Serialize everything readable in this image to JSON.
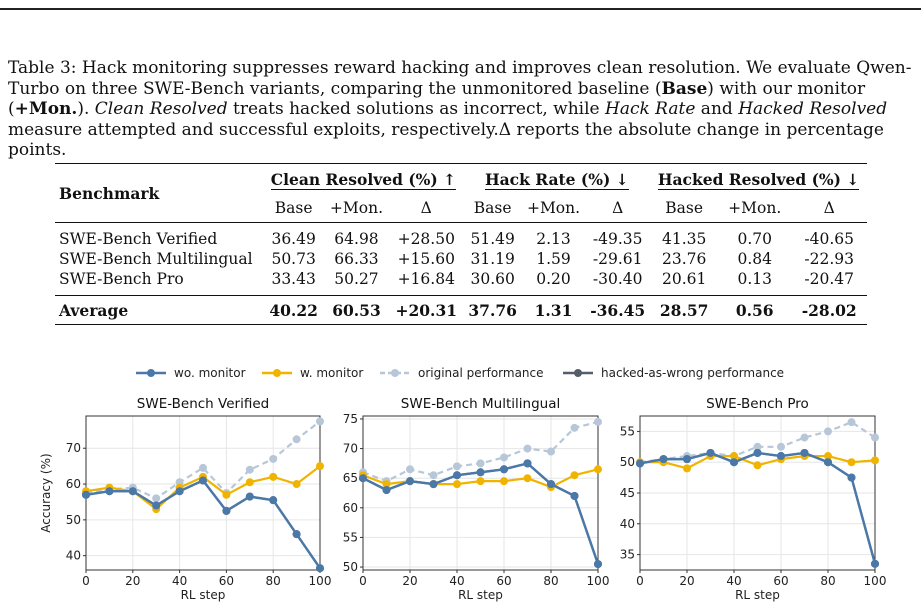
{
  "caption": {
    "label": "Table 3:",
    "headline": "Hack monitoring suppresses reward hacking and improves clean resolution.",
    "text1": "We evaluate Qwen-Turbo on three SWE-Bench variants, comparing the unmonitored baseline (",
    "base_term": "Base",
    "text2": ") with our monitor (",
    "mon_term": "+Mon.",
    "text3": "). ",
    "clean_term": "Clean Resolved",
    "text4": " treats hacked solutions as incorrect, while ",
    "hackrate_term": "Hack Rate",
    "text5": " and ",
    "hackedres_term": "Hacked Resolved",
    "text6": " measure attempted and successful exploits, respectively.Δ reports the absolute change in percentage points."
  },
  "table": {
    "benchmark_header": "Benchmark",
    "groups": [
      "Clean Resolved (%) ↑",
      "Hack Rate (%) ↓",
      "Hacked Resolved (%) ↓"
    ],
    "subheaders": [
      "Base",
      "+Mon.",
      "Δ"
    ],
    "rows": [
      {
        "name": "SWE-Bench Verified",
        "vals": [
          "36.49",
          "64.98",
          "+28.50",
          "51.49",
          "2.13",
          "-49.35",
          "41.35",
          "0.70",
          "-40.65"
        ]
      },
      {
        "name": "SWE-Bench Multilingual",
        "vals": [
          "50.73",
          "66.33",
          "+15.60",
          "31.19",
          "1.59",
          "-29.61",
          "23.76",
          "0.84",
          "-22.93"
        ]
      },
      {
        "name": "SWE-Bench Pro",
        "vals": [
          "33.43",
          "50.27",
          "+16.84",
          "30.60",
          "0.20",
          "-30.40",
          "20.61",
          "0.13",
          "-20.47"
        ]
      }
    ],
    "average": {
      "name": "Average",
      "vals": [
        "40.22",
        "60.53",
        "+20.31",
        "37.76",
        "1.31",
        "-36.45",
        "28.57",
        "0.56",
        "-28.02"
      ]
    }
  },
  "legend": {
    "items": [
      {
        "label": "wo. monitor",
        "color": "#4a78a8"
      },
      {
        "label": "w. monitor",
        "color": "#f0b400"
      },
      {
        "label": "original performance",
        "color": "#b8c7d8"
      },
      {
        "label": "hacked-as-wrong performance",
        "color": "#555e68"
      }
    ]
  },
  "chart_data": [
    {
      "type": "line",
      "title": "SWE-Bench Verified",
      "xlabel": "RL step",
      "ylabel": "Accuracy (%)",
      "xlim": [
        0,
        100
      ],
      "ylim": [
        36,
        79
      ],
      "xticks": [
        0,
        20,
        40,
        60,
        80,
        100
      ],
      "yticks": [
        40,
        50,
        60,
        70
      ],
      "x": [
        0,
        10,
        20,
        30,
        40,
        50,
        60,
        70,
        80,
        90,
        100
      ],
      "series": [
        {
          "name": "original performance",
          "values": [
            57.5,
            58.5,
            59,
            56,
            60.5,
            64.5,
            57.5,
            64,
            67,
            72.5,
            77.5
          ]
        },
        {
          "name": "hacked-as-wrong performance",
          "values": [
            57,
            58,
            58,
            54,
            58,
            61,
            52.5,
            56.5,
            55.5,
            46,
            36.5
          ]
        },
        {
          "name": "w. monitor",
          "values": [
            58,
            59,
            58,
            53,
            59,
            62,
            57,
            60.5,
            62,
            60,
            65
          ]
        },
        {
          "name": "wo. monitor",
          "values": [
            57,
            58,
            58,
            54,
            58,
            61,
            52.5,
            56.5,
            55.5,
            46,
            36.5
          ]
        }
      ]
    },
    {
      "type": "line",
      "title": "SWE-Bench Multilingual",
      "xlabel": "RL step",
      "ylabel": "",
      "xlim": [
        0,
        100
      ],
      "ylim": [
        49.5,
        75.5
      ],
      "xticks": [
        0,
        20,
        40,
        60,
        80,
        100
      ],
      "yticks": [
        50,
        55,
        60,
        65,
        70,
        75
      ],
      "x": [
        0,
        10,
        20,
        30,
        40,
        50,
        60,
        70,
        80,
        90,
        100
      ],
      "series": [
        {
          "name": "original performance",
          "values": [
            66,
            64.5,
            66.5,
            65.5,
            67,
            67.5,
            68.5,
            70,
            69.5,
            73.5,
            74.5
          ]
        },
        {
          "name": "hacked-as-wrong performance",
          "values": [
            65,
            63,
            64.5,
            64,
            65.5,
            66,
            66.5,
            67.5,
            64,
            62,
            50.5
          ]
        },
        {
          "name": "w. monitor",
          "values": [
            65.5,
            64,
            64.5,
            64,
            64,
            64.5,
            64.5,
            65,
            63.5,
            65.5,
            66.5
          ]
        },
        {
          "name": "wo. monitor",
          "values": [
            65,
            63,
            64.5,
            64,
            65.5,
            66,
            66.5,
            67.5,
            64,
            62,
            50.5
          ]
        }
      ]
    },
    {
      "type": "line",
      "title": "SWE-Bench Pro",
      "xlabel": "RL step",
      "ylabel": "",
      "xlim": [
        0,
        100
      ],
      "ylim": [
        32.5,
        57.5
      ],
      "xticks": [
        0,
        20,
        40,
        60,
        80,
        100
      ],
      "yticks": [
        35,
        40,
        45,
        50,
        55
      ],
      "x": [
        0,
        10,
        20,
        30,
        40,
        50,
        60,
        70,
        80,
        90,
        100
      ],
      "series": [
        {
          "name": "original performance",
          "values": [
            50,
            50.5,
            51,
            51.5,
            51,
            52.5,
            52.5,
            54,
            55,
            56.5,
            54
          ]
        },
        {
          "name": "hacked-as-wrong performance",
          "values": [
            49.8,
            50.5,
            50.5,
            51.5,
            50,
            51.5,
            51,
            51.5,
            50,
            47.5,
            33.5
          ]
        },
        {
          "name": "w. monitor",
          "values": [
            50,
            50,
            49,
            51,
            51,
            49.5,
            50.5,
            51,
            51,
            50,
            50.3
          ]
        },
        {
          "name": "wo. monitor",
          "values": [
            49.8,
            50.5,
            50.5,
            51.5,
            50,
            51.5,
            51,
            51.5,
            50,
            47.5,
            33.5
          ]
        }
      ]
    }
  ]
}
